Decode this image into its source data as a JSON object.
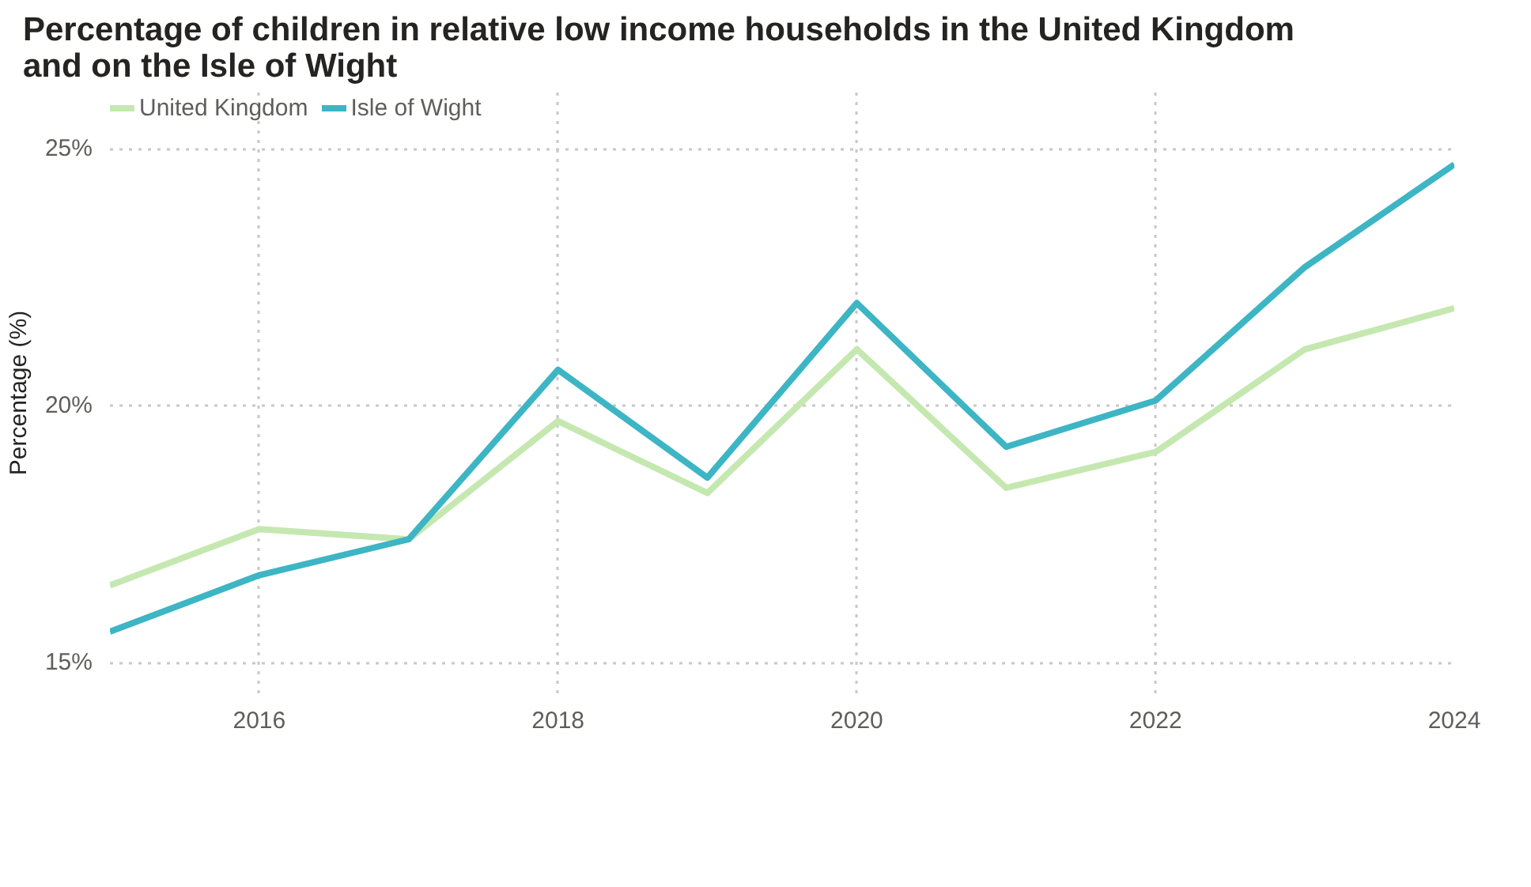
{
  "chart_data": {
    "type": "line",
    "title": "Percentage of children in relative low income households in the United Kingdom and on the Isle of Wight",
    "ylabel": "Percentage (%)",
    "x": [
      2015,
      2016,
      2017,
      2018,
      2019,
      2020,
      2021,
      2022,
      2023,
      2024
    ],
    "series": [
      {
        "name": "United Kingdom",
        "color": "#c5e8b0",
        "values": [
          16.5,
          17.6,
          17.4,
          19.7,
          18.3,
          21.1,
          18.4,
          19.1,
          21.1,
          21.9
        ]
      },
      {
        "name": "Isle of Wight",
        "color": "#3db5c4",
        "values": [
          15.6,
          16.7,
          17.4,
          20.7,
          18.6,
          22.0,
          19.2,
          20.1,
          22.7,
          24.7
        ]
      }
    ],
    "xlim": [
      2015,
      2024
    ],
    "xticks": [
      2016,
      2018,
      2020,
      2022,
      2024
    ],
    "ylim": [
      14.4,
      26.1
    ],
    "yticks": [
      {
        "value": 15,
        "label": "15%"
      },
      {
        "value": 20,
        "label": "20%"
      },
      {
        "value": 25,
        "label": "25%"
      }
    ],
    "grid": true,
    "legend": "top left"
  }
}
